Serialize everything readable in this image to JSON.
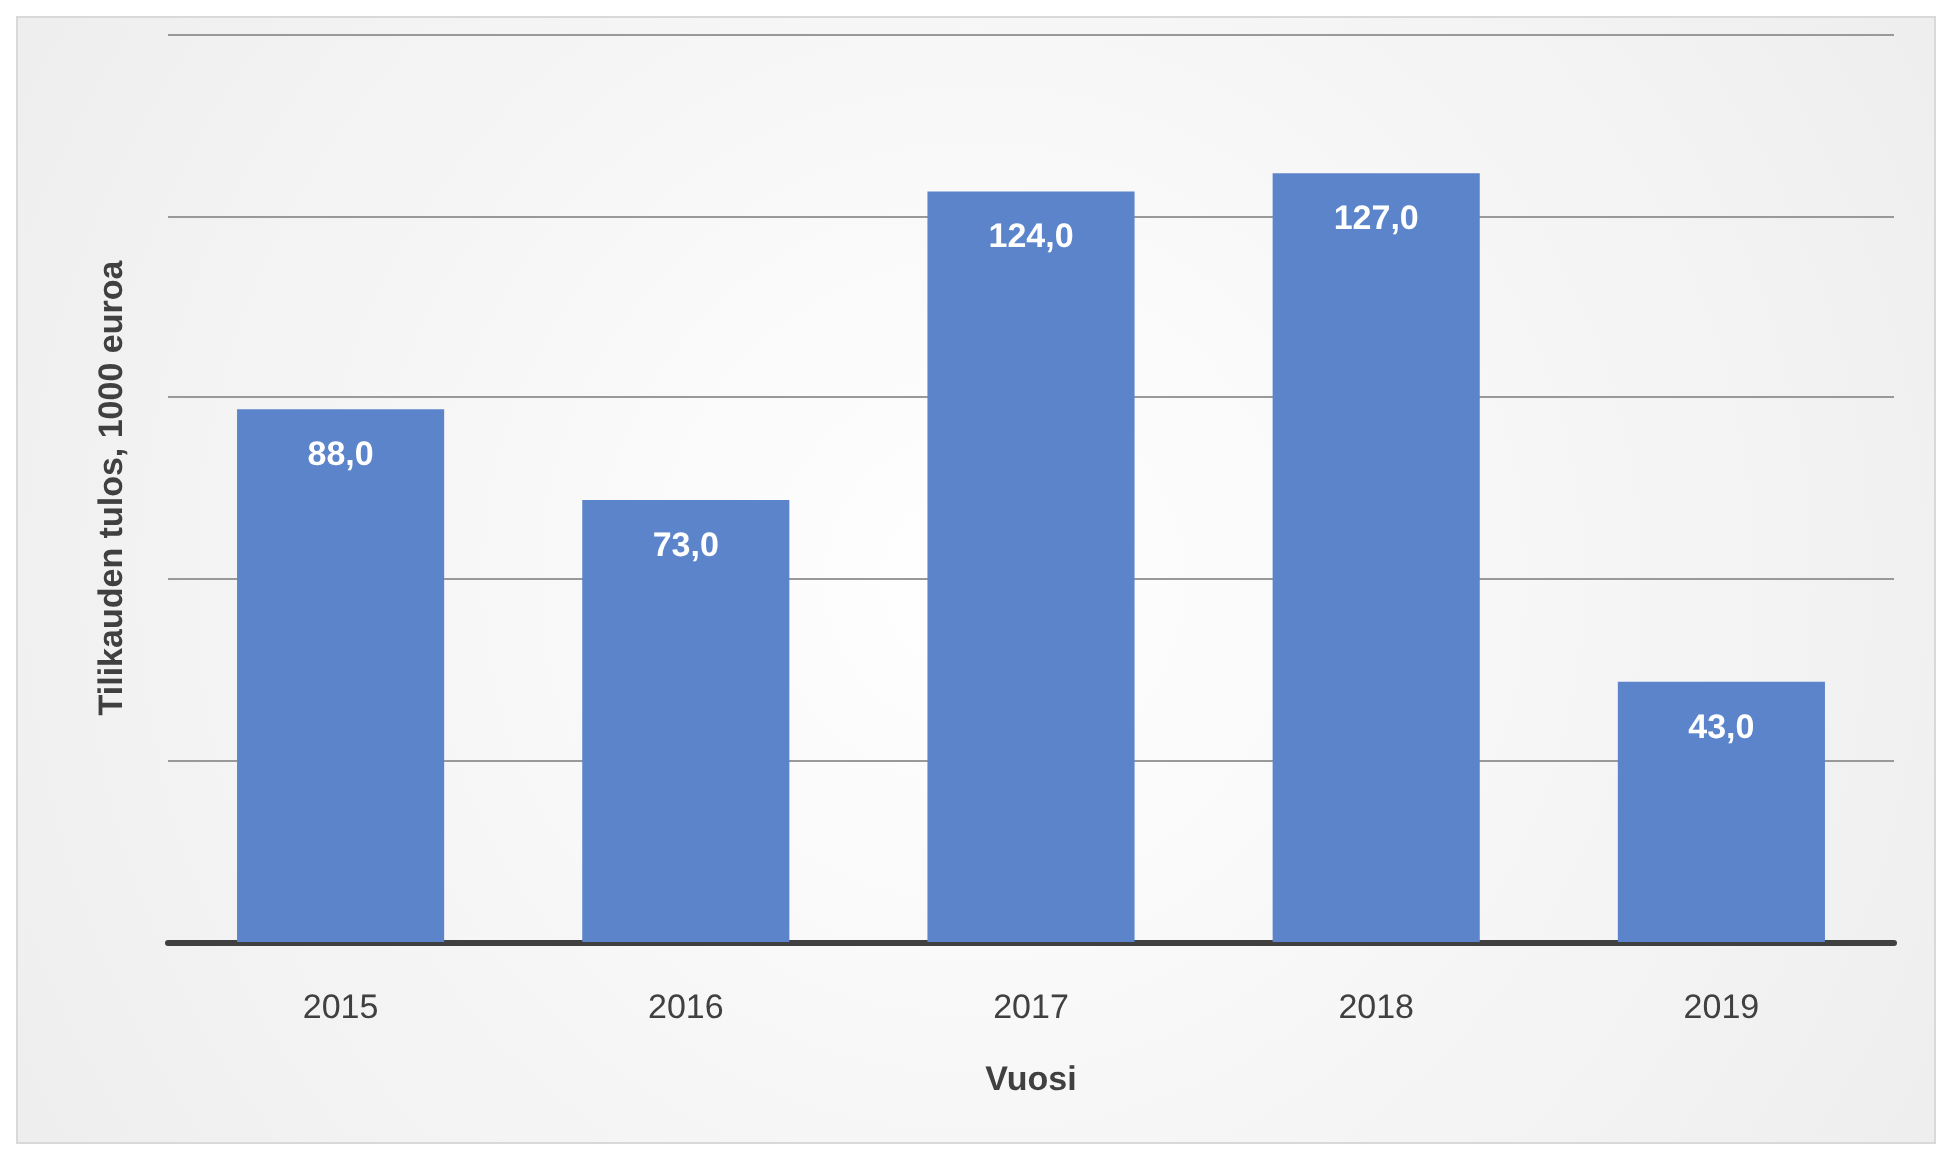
{
  "chart_data": {
    "type": "bar",
    "xlabel": "Vuosi",
    "ylabel": "Tilikauden tulos, 1000 euroa",
    "categories": [
      "2015",
      "2016",
      "2017",
      "2018",
      "2019"
    ],
    "values": [
      88,
      73,
      124,
      127,
      43
    ],
    "value_labels": [
      "88,0",
      "73,0",
      "124,0",
      "127,0",
      "43,0"
    ],
    "color": "#5b84cb",
    "grid": "y"
  }
}
